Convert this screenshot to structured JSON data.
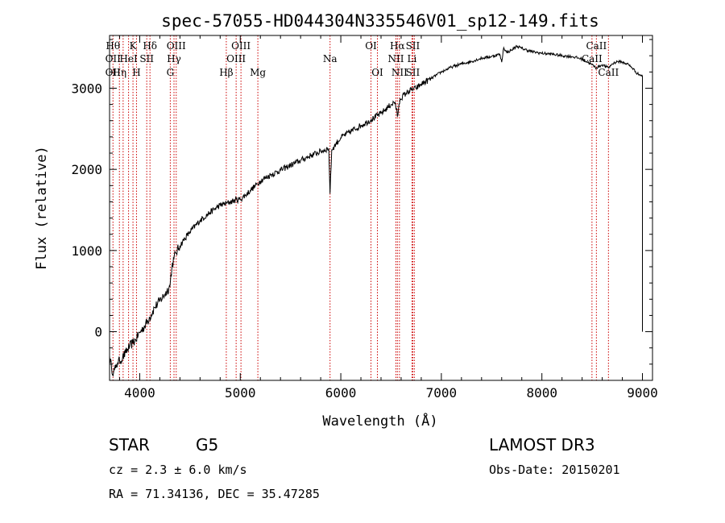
{
  "chart_data": {
    "type": "line",
    "title": "spec-57055-HD044304N335546V01_sp12-149.fits",
    "xlabel": "Wavelength (Å)",
    "ylabel": "Flux (relative)",
    "xlim": [
      3700,
      9100
    ],
    "ylim": [
      -600,
      3650
    ],
    "xticks": [
      4000,
      5000,
      6000,
      7000,
      8000,
      9000
    ],
    "yticks": [
      0,
      1000,
      2000,
      3000
    ],
    "series": [
      {
        "name": "flux",
        "color": "#000000",
        "x": [
          3700,
          3720,
          3740,
          3760,
          3780,
          3800,
          3830,
          3860,
          3900,
          3930,
          3960,
          4000,
          4050,
          4100,
          4150,
          4200,
          4250,
          4300,
          4320,
          4340,
          4360,
          4400,
          4450,
          4500,
          4600,
          4700,
          4800,
          4860,
          4900,
          4950,
          5000,
          5050,
          5100,
          5170,
          5200,
          5300,
          5400,
          5500,
          5600,
          5700,
          5800,
          5880,
          5893,
          5910,
          5950,
          6000,
          6100,
          6200,
          6300,
          6400,
          6500,
          6540,
          6563,
          6590,
          6650,
          6700,
          6750,
          6800,
          6900,
          7000,
          7100,
          7200,
          7300,
          7400,
          7500,
          7580,
          7600,
          7620,
          7650,
          7700,
          7750,
          7800,
          7900,
          8000,
          8100,
          8200,
          8300,
          8400,
          8498,
          8542,
          8600,
          8662,
          8700,
          8750,
          8800,
          8850,
          8900,
          8950,
          9000,
          9000,
          9000
        ],
        "y": [
          -300,
          -450,
          -500,
          -450,
          -380,
          -360,
          -320,
          -260,
          -180,
          -140,
          -100,
          -10,
          70,
          180,
          300,
          380,
          460,
          560,
          800,
          900,
          970,
          1060,
          1150,
          1230,
          1370,
          1470,
          1560,
          1580,
          1600,
          1620,
          1630,
          1680,
          1740,
          1820,
          1860,
          1930,
          1990,
          2050,
          2110,
          2170,
          2220,
          2260,
          1700,
          2240,
          2310,
          2390,
          2470,
          2540,
          2610,
          2690,
          2800,
          2830,
          2650,
          2870,
          2940,
          2980,
          3000,
          3050,
          3120,
          3200,
          3260,
          3300,
          3330,
          3370,
          3390,
          3420,
          3320,
          3500,
          3440,
          3470,
          3520,
          3490,
          3450,
          3430,
          3420,
          3400,
          3390,
          3360,
          3290,
          3250,
          3290,
          3250,
          3300,
          3330,
          3320,
          3300,
          3250,
          3180,
          3150,
          300,
          0
        ]
      }
    ],
    "lines": [
      {
        "wave": 3734,
        "top": "Hθ",
        "mid": "OII",
        "bottom": "OII"
      },
      {
        "wave": 3798,
        "top": "",
        "mid": "",
        "bottom": "Hη"
      },
      {
        "wave": 3835,
        "top": "",
        "mid": "",
        "bottom": ""
      },
      {
        "wave": 3889,
        "top": "",
        "mid": "HeI",
        "bottom": ""
      },
      {
        "wave": 3933,
        "top": "K",
        "mid": "",
        "bottom": ""
      },
      {
        "wave": 3968,
        "top": "",
        "mid": "",
        "bottom": "H"
      },
      {
        "wave": 4070,
        "top": "",
        "mid": "SII",
        "bottom": ""
      },
      {
        "wave": 4102,
        "top": "Hδ",
        "mid": "",
        "bottom": ""
      },
      {
        "wave": 4304,
        "top": "",
        "mid": "",
        "bottom": "G"
      },
      {
        "wave": 4341,
        "top": "",
        "mid": "Hγ",
        "bottom": ""
      },
      {
        "wave": 4363,
        "top": "OIII",
        "mid": "",
        "bottom": ""
      },
      {
        "wave": 4861,
        "top": "",
        "mid": "",
        "bottom": "Hβ"
      },
      {
        "wave": 4959,
        "top": "",
        "mid": "OIII",
        "bottom": ""
      },
      {
        "wave": 5007,
        "top": "OIII",
        "mid": "",
        "bottom": ""
      },
      {
        "wave": 5175,
        "top": "",
        "mid": "",
        "bottom": "Mg"
      },
      {
        "wave": 5893,
        "top": "",
        "mid": "Na",
        "bottom": ""
      },
      {
        "wave": 6300,
        "top": "OI",
        "mid": "",
        "bottom": ""
      },
      {
        "wave": 6364,
        "top": "",
        "mid": "",
        "bottom": "OI"
      },
      {
        "wave": 6548,
        "top": "",
        "mid": "NII",
        "bottom": ""
      },
      {
        "wave": 6563,
        "top": "Hα",
        "mid": "",
        "bottom": ""
      },
      {
        "wave": 6583,
        "top": "",
        "mid": "",
        "bottom": "NII"
      },
      {
        "wave": 6708,
        "top": "",
        "mid": "Li",
        "bottom": ""
      },
      {
        "wave": 6716,
        "top": "SII",
        "mid": "",
        "bottom": "SII"
      },
      {
        "wave": 6731,
        "top": "",
        "mid": "",
        "bottom": ""
      },
      {
        "wave": 8498,
        "top": "",
        "mid": "CaII",
        "bottom": ""
      },
      {
        "wave": 8542,
        "top": "CaII",
        "mid": "",
        "bottom": ""
      },
      {
        "wave": 8662,
        "top": "",
        "mid": "",
        "bottom": "CaII"
      }
    ],
    "line_color": "#cc0000"
  },
  "info": {
    "object_class": "STAR",
    "subclass": "G5",
    "survey": "LAMOST DR3",
    "cz": "cz = 2.3 ± 6.0 km/s",
    "obs_date": "Obs-Date: 20150201",
    "coords": "RA =  71.34136, DEC =  35.47285"
  }
}
